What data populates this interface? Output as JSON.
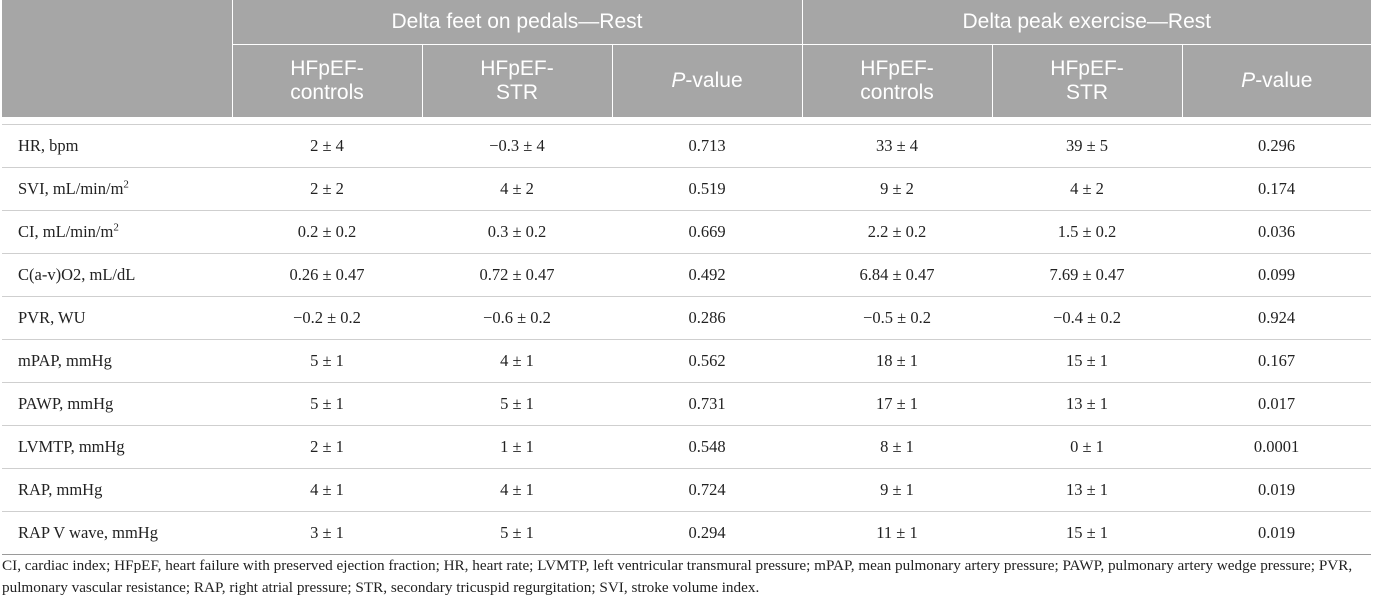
{
  "header": {
    "group_feet": "Delta feet on pedals—Rest",
    "group_peak": "Delta peak exercise—Rest",
    "col_controls_1": "HFpEF-",
    "col_controls_2": "controls",
    "col_str_1": "HFpEF-",
    "col_str_2": "STR",
    "col_p_italic": "P",
    "col_p_rest": "-value"
  },
  "rows": [
    {
      "label": "HR, bpm",
      "sup": "",
      "ff_ctrl": "2 ± 4",
      "ff_str": "−0.3 ± 4",
      "ff_p": "0.713",
      "pk_ctrl": "33 ± 4",
      "pk_str": "39 ± 5",
      "pk_p": "0.296"
    },
    {
      "label": "SVI, mL/min/m",
      "sup": "2",
      "ff_ctrl": "2 ± 2",
      "ff_str": "4 ± 2",
      "ff_p": "0.519",
      "pk_ctrl": "9 ± 2",
      "pk_str": "4 ± 2",
      "pk_p": "0.174"
    },
    {
      "label": "CI, mL/min/m",
      "sup": "2",
      "ff_ctrl": "0.2 ± 0.2",
      "ff_str": "0.3 ± 0.2",
      "ff_p": "0.669",
      "pk_ctrl": "2.2 ± 0.2",
      "pk_str": "1.5 ± 0.2",
      "pk_p": "0.036"
    },
    {
      "label": "C(a-v)O2, mL/dL",
      "sup": "",
      "ff_ctrl": "0.26 ± 0.47",
      "ff_str": "0.72 ± 0.47",
      "ff_p": "0.492",
      "pk_ctrl": "6.84 ± 0.47",
      "pk_str": "7.69 ± 0.47",
      "pk_p": "0.099"
    },
    {
      "label": "PVR, WU",
      "sup": "",
      "ff_ctrl": "−0.2 ± 0.2",
      "ff_str": "−0.6 ± 0.2",
      "ff_p": "0.286",
      "pk_ctrl": "−0.5 ± 0.2",
      "pk_str": "−0.4 ± 0.2",
      "pk_p": "0.924"
    },
    {
      "label": "mPAP, mmHg",
      "sup": "",
      "ff_ctrl": "5 ± 1",
      "ff_str": "4 ± 1",
      "ff_p": "0.562",
      "pk_ctrl": "18 ± 1",
      "pk_str": "15 ± 1",
      "pk_p": "0.167"
    },
    {
      "label": "PAWP, mmHg",
      "sup": "",
      "ff_ctrl": "5 ± 1",
      "ff_str": "5 ± 1",
      "ff_p": "0.731",
      "pk_ctrl": "17 ± 1",
      "pk_str": "13 ± 1",
      "pk_p": "0.017"
    },
    {
      "label": "LVMTP, mmHg",
      "sup": "",
      "ff_ctrl": "2 ± 1",
      "ff_str": "1 ± 1",
      "ff_p": "0.548",
      "pk_ctrl": "8 ± 1",
      "pk_str": "0 ± 1",
      "pk_p": "0.0001"
    },
    {
      "label": "RAP, mmHg",
      "sup": "",
      "ff_ctrl": "4 ± 1",
      "ff_str": "4 ± 1",
      "ff_p": "0.724",
      "pk_ctrl": "9 ± 1",
      "pk_str": "13 ± 1",
      "pk_p": "0.019"
    },
    {
      "label": "RAP V wave, mmHg",
      "sup": "",
      "ff_ctrl": "3 ± 1",
      "ff_str": "5 ± 1",
      "ff_p": "0.294",
      "pk_ctrl": "11 ± 1",
      "pk_str": "15 ± 1",
      "pk_p": "0.019"
    }
  ],
  "footnote": "CI, cardiac index; HFpEF, heart failure with preserved ejection fraction; HR, heart rate; LVMTP, left ventricular transmural pressure; mPAP, mean pulmonary artery pressure; PAWP, pulmonary artery wedge pressure; PVR, pulmonary vascular resistance; RAP, right atrial pressure; STR, secondary tricuspid regurgitation; SVI, stroke volume index."
}
